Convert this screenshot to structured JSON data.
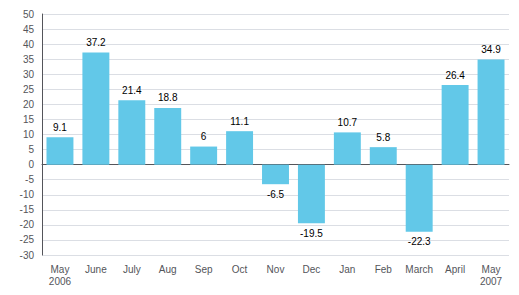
{
  "chart_data": {
    "type": "bar",
    "categories": [
      "May\n2006",
      "June",
      "July",
      "Aug",
      "Sep",
      "Oct",
      "Nov",
      "Dec",
      "Jan",
      "Feb",
      "March",
      "April",
      "May\n2007"
    ],
    "values": [
      9.1,
      37.2,
      21.4,
      18.8,
      6.0,
      11.1,
      -6.5,
      -19.5,
      10.7,
      5.8,
      -22.3,
      26.4,
      34.9
    ],
    "color": "#62C8E8",
    "ylim": [
      -30,
      50
    ],
    "yticks": [
      -30,
      -25,
      -20,
      -15,
      -10,
      -5,
      0,
      5,
      10,
      15,
      20,
      25,
      30,
      35,
      40,
      45,
      50
    ],
    "grid": true,
    "data_labels": true
  }
}
